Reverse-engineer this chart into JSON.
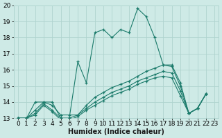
{
  "xlabel": "Humidex (Indice chaleur)",
  "line_color": "#1a7a6a",
  "bg_color": "#ceeae6",
  "grid_color": "#afd4cf",
  "xlim": [
    -0.5,
    23.5
  ],
  "ylim": [
    13,
    20
  ],
  "xtick_labels": [
    "0",
    "1",
    "2",
    "3",
    "4",
    "5",
    "6",
    "7",
    "8",
    "9",
    "10",
    "11",
    "12",
    "13",
    "14",
    "15",
    "16",
    "17",
    "18",
    "19",
    "20",
    "21",
    "22",
    "23"
  ],
  "ytick_labels": [
    "13",
    "14",
    "15",
    "16",
    "17",
    "18",
    "19",
    "20"
  ],
  "series": [
    {
      "x": [
        0,
        1,
        2,
        3,
        4,
        5,
        6,
        7,
        8,
        9,
        10,
        11,
        12,
        13,
        14,
        15,
        16,
        17,
        18,
        19,
        20,
        21,
        22
      ],
      "y": [
        13,
        13,
        14,
        14,
        14,
        13,
        13,
        16.5,
        15.2,
        18.3,
        18.5,
        18.0,
        18.5,
        18.3,
        19.8,
        19.3,
        18.0,
        16.3,
        16.3,
        15.2,
        13.3,
        13.6,
        14.5
      ]
    },
    {
      "x": [
        0,
        1,
        2,
        3,
        4,
        5,
        6,
        7,
        8,
        9,
        10,
        11,
        12,
        13,
        14,
        15,
        16,
        17,
        18,
        19,
        20,
        21,
        22
      ],
      "y": [
        13,
        13,
        13.5,
        14,
        13.8,
        13.2,
        13.2,
        13.2,
        13.8,
        14.3,
        14.6,
        14.9,
        15.1,
        15.3,
        15.6,
        15.9,
        16.1,
        16.3,
        16.2,
        15.0,
        13.3,
        13.6,
        14.5
      ]
    },
    {
      "x": [
        0,
        1,
        2,
        3,
        4,
        5,
        6,
        7,
        8,
        9,
        10,
        11,
        12,
        13,
        14,
        15,
        16,
        17,
        18,
        19,
        20,
        21,
        22
      ],
      "y": [
        13,
        13,
        13.3,
        13.9,
        13.5,
        13.0,
        13.0,
        13.2,
        13.6,
        14.0,
        14.3,
        14.6,
        14.8,
        15.0,
        15.3,
        15.5,
        15.7,
        15.9,
        15.8,
        14.7,
        13.3,
        13.6,
        14.5
      ]
    },
    {
      "x": [
        0,
        1,
        2,
        3,
        4,
        5,
        6,
        7,
        8,
        9,
        10,
        11,
        12,
        13,
        14,
        15,
        16,
        17,
        18,
        19,
        20,
        21,
        22
      ],
      "y": [
        13,
        13,
        13.2,
        13.8,
        13.4,
        12.9,
        12.9,
        13.1,
        13.5,
        13.8,
        14.1,
        14.4,
        14.6,
        14.8,
        15.1,
        15.3,
        15.5,
        15.6,
        15.5,
        14.4,
        13.3,
        13.6,
        14.5
      ]
    }
  ],
  "xlabel_fontsize": 7,
  "tick_fontsize": 6.5
}
